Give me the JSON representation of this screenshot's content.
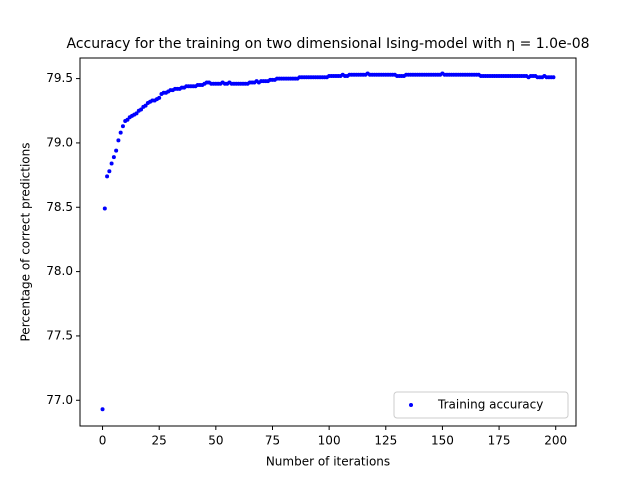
{
  "chart_data": {
    "type": "scatter",
    "title": "Accuracy for the training on two dimensional Ising-model with η = 1.0e-08",
    "x_label": "Number of iterations",
    "y_label": "Percentage of correct predictions",
    "legend_position": "lower right",
    "xlim": [
      -9.95,
      208.95
    ],
    "ylim": [
      76.8,
      79.66
    ],
    "xticks": [
      0,
      25,
      50,
      75,
      100,
      125,
      150,
      175,
      200
    ],
    "yticks": [
      {
        "value": 77.0,
        "label": "77.0"
      },
      77.5,
      {
        "value": 78.0,
        "label": "78.0"
      },
      78.5,
      {
        "value": 79.0,
        "label": "79.0"
      },
      79.5
    ],
    "series": [
      {
        "name": "Training accuracy",
        "color": "#0000ff",
        "x": [
          0,
          1,
          2,
          3,
          4,
          5,
          6,
          7,
          8,
          9,
          10,
          11,
          12,
          13,
          14,
          15,
          16,
          17,
          18,
          19,
          20,
          21,
          22,
          23,
          24,
          25,
          26,
          27,
          28,
          29,
          30,
          31,
          32,
          33,
          34,
          35,
          36,
          37,
          38,
          39,
          40,
          41,
          42,
          43,
          44,
          45,
          46,
          47,
          48,
          49,
          50,
          51,
          52,
          53,
          54,
          55,
          56,
          57,
          58,
          59,
          60,
          61,
          62,
          63,
          64,
          65,
          66,
          67,
          68,
          69,
          70,
          71,
          72,
          73,
          74,
          75,
          76,
          77,
          78,
          79,
          80,
          81,
          82,
          83,
          84,
          85,
          86,
          87,
          88,
          89,
          90,
          91,
          92,
          93,
          94,
          95,
          96,
          97,
          98,
          99,
          100,
          101,
          102,
          103,
          104,
          105,
          106,
          107,
          108,
          109,
          110,
          111,
          112,
          113,
          114,
          115,
          116,
          117,
          118,
          119,
          120,
          121,
          122,
          123,
          124,
          125,
          126,
          127,
          128,
          129,
          130,
          131,
          132,
          133,
          134,
          135,
          136,
          137,
          138,
          139,
          140,
          141,
          142,
          143,
          144,
          145,
          146,
          147,
          148,
          149,
          150,
          151,
          152,
          153,
          154,
          155,
          156,
          157,
          158,
          159,
          160,
          161,
          162,
          163,
          164,
          165,
          166,
          167,
          168,
          169,
          170,
          171,
          172,
          173,
          174,
          175,
          176,
          177,
          178,
          179,
          180,
          181,
          182,
          183,
          184,
          185,
          186,
          187,
          188,
          189,
          190,
          191,
          192,
          193,
          194,
          195,
          196,
          197,
          198,
          199
        ],
        "values": [
          76.93,
          78.49,
          78.74,
          78.78,
          78.84,
          78.89,
          78.94,
          79.02,
          79.08,
          79.13,
          79.17,
          79.18,
          79.2,
          79.21,
          79.22,
          79.23,
          79.25,
          79.26,
          79.28,
          79.29,
          79.31,
          79.32,
          79.33,
          79.33,
          79.34,
          79.35,
          79.38,
          79.39,
          79.39,
          79.4,
          79.41,
          79.41,
          79.42,
          79.42,
          79.42,
          79.43,
          79.43,
          79.44,
          79.44,
          79.44,
          79.44,
          79.44,
          79.45,
          79.45,
          79.45,
          79.46,
          79.47,
          79.47,
          79.46,
          79.46,
          79.46,
          79.46,
          79.46,
          79.47,
          79.46,
          79.46,
          79.47,
          79.46,
          79.46,
          79.46,
          79.46,
          79.46,
          79.46,
          79.46,
          79.46,
          79.47,
          79.47,
          79.47,
          79.48,
          79.47,
          79.48,
          79.48,
          79.48,
          79.48,
          79.49,
          79.49,
          79.49,
          79.5,
          79.5,
          79.5,
          79.5,
          79.5,
          79.5,
          79.5,
          79.5,
          79.5,
          79.5,
          79.51,
          79.51,
          79.51,
          79.51,
          79.51,
          79.51,
          79.51,
          79.51,
          79.51,
          79.51,
          79.51,
          79.51,
          79.51,
          79.52,
          79.52,
          79.52,
          79.52,
          79.52,
          79.52,
          79.53,
          79.52,
          79.52,
          79.53,
          79.53,
          79.53,
          79.53,
          79.53,
          79.53,
          79.53,
          79.53,
          79.54,
          79.53,
          79.53,
          79.53,
          79.53,
          79.53,
          79.53,
          79.53,
          79.53,
          79.53,
          79.53,
          79.53,
          79.53,
          79.52,
          79.52,
          79.52,
          79.52,
          79.53,
          79.53,
          79.53,
          79.53,
          79.53,
          79.53,
          79.53,
          79.53,
          79.53,
          79.53,
          79.53,
          79.53,
          79.53,
          79.53,
          79.53,
          79.53,
          79.54,
          79.53,
          79.53,
          79.53,
          79.53,
          79.53,
          79.53,
          79.53,
          79.53,
          79.53,
          79.53,
          79.53,
          79.53,
          79.53,
          79.53,
          79.53,
          79.53,
          79.52,
          79.52,
          79.52,
          79.52,
          79.52,
          79.52,
          79.52,
          79.52,
          79.52,
          79.52,
          79.52,
          79.52,
          79.52,
          79.52,
          79.52,
          79.52,
          79.52,
          79.52,
          79.52,
          79.52,
          79.52,
          79.51,
          79.52,
          79.52,
          79.52,
          79.51,
          79.51,
          79.51,
          79.52,
          79.51,
          79.51,
          79.51,
          79.51
        ]
      }
    ]
  }
}
